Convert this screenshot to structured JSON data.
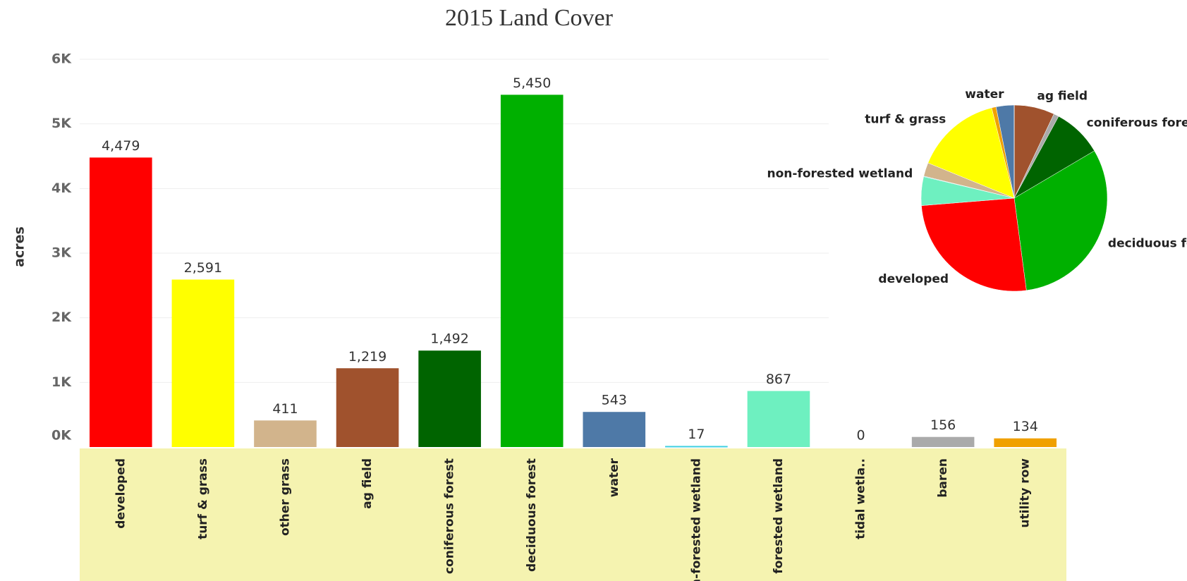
{
  "chart_data": [
    {
      "type": "bar",
      "title": "2015 Land Cover",
      "y_label": "acres",
      "categories": [
        "developed",
        "turf & grass",
        "other grass",
        "ag field",
        "coniferous forest",
        "deciduous forest",
        "water",
        "non-forested wetland",
        "forested wetland",
        "tidal wetla..",
        "baren",
        "utility row"
      ],
      "values": [
        4479,
        2591,
        411,
        1219,
        1492,
        5450,
        543,
        17,
        867,
        0,
        156,
        134
      ],
      "value_labels": [
        "4,479",
        "2,591",
        "411",
        "1,219",
        "1,492",
        "5,450",
        "543",
        "17",
        "867",
        "0",
        "156",
        "134"
      ],
      "colors": [
        "#ff0000",
        "#ffff00",
        "#d2b48c",
        "#a0522d",
        "#006400",
        "#00b000",
        "#4e79a7",
        "#40d0e0",
        "#6ef0c0",
        "#cccccc",
        "#aaaaaa",
        "#f0a000"
      ],
      "ylim": [
        0,
        6000
      ],
      "yticks": [
        {
          "value": 0,
          "label": "0K"
        },
        {
          "value": 1000,
          "label": "1K"
        },
        {
          "value": 2000,
          "label": "2K"
        },
        {
          "value": 3000,
          "label": "3K"
        },
        {
          "value": 4000,
          "label": "4K"
        },
        {
          "value": 5000,
          "label": "5K"
        },
        {
          "value": 6000,
          "label": "6K"
        }
      ],
      "grid": true
    },
    {
      "type": "pie",
      "categories": [
        "ag field",
        null,
        "coniferous forest",
        "deciduous forest",
        "developed",
        null,
        "non-forested wetland",
        null,
        "turf & grass",
        null,
        "water",
        null
      ],
      "values": [
        1219,
        156,
        1492,
        5450,
        4479,
        867,
        17,
        411,
        2591,
        134,
        543,
        0
      ],
      "colors": [
        "#a0522d",
        "#aaaaaa",
        "#006400",
        "#00b000",
        "#ff0000",
        "#6ef0c0",
        "#40d0e0",
        "#d2b48c",
        "#ffff00",
        "#f0a000",
        "#4e79a7",
        "#cccccc"
      ]
    }
  ]
}
